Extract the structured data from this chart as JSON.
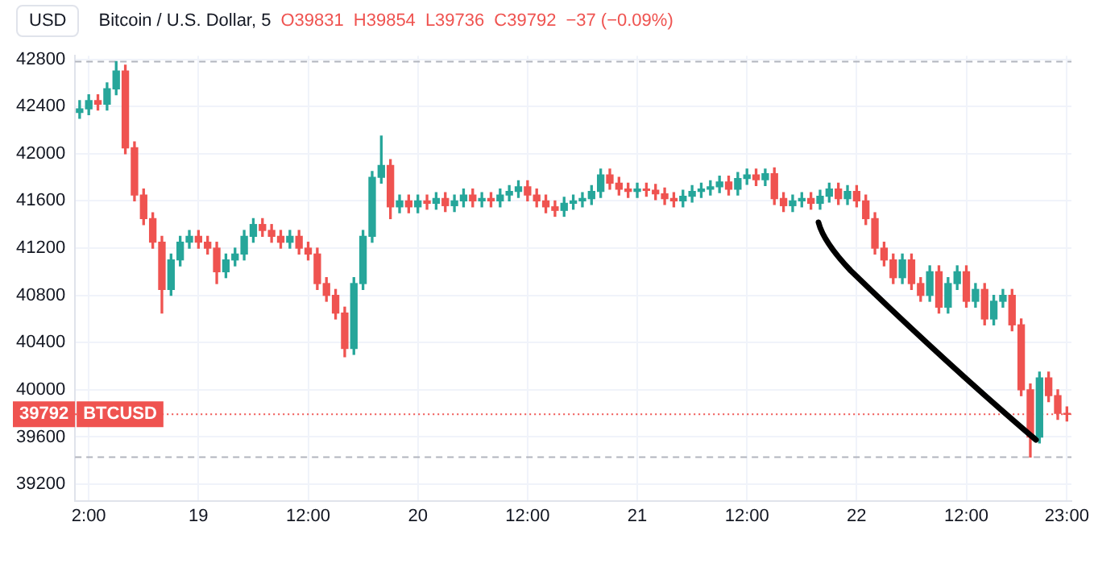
{
  "chart_data": {
    "type": "candlestick",
    "title": "Bitcoin / U.S. Dollar, 5",
    "ylabel": "USD",
    "annotations": [
      "O39831",
      "H39854",
      "L39736",
      "C39792",
      "−37 (−0.09%)",
      {
        "text": "39792",
        "y": 39792
      }
    ],
    "categories": [
      null,
      "2:00",
      null,
      null,
      null,
      null,
      null,
      null,
      null,
      null,
      null,
      null,
      null,
      "19",
      null,
      null,
      null,
      null,
      null,
      null,
      null,
      null,
      null,
      null,
      null,
      "12:00",
      null,
      null,
      null,
      null,
      null,
      null,
      null,
      null,
      null,
      null,
      null,
      "20",
      null,
      null,
      null,
      null,
      null,
      null,
      null,
      null,
      null,
      null,
      null,
      "12:00",
      null,
      null,
      null,
      null,
      null,
      null,
      null,
      null,
      null,
      null,
      null,
      "21",
      null,
      null,
      null,
      null,
      null,
      null,
      null,
      null,
      null,
      null,
      null,
      "12:00",
      null,
      null,
      null,
      null,
      null,
      null,
      null,
      null,
      null,
      null,
      null,
      "22",
      null,
      null,
      null,
      null,
      null,
      null,
      null,
      null,
      null,
      null,
      null,
      "12:00",
      null,
      null,
      null,
      null,
      null,
      null,
      null,
      null,
      null,
      null,
      "23:00"
    ],
    "ohlc": [
      [
        42350,
        42450,
        42300,
        42380
      ],
      [
        42380,
        42500,
        42330,
        42450
      ],
      [
        42450,
        42500,
        42370,
        42420
      ],
      [
        42420,
        42600,
        42370,
        42550
      ],
      [
        42550,
        42780,
        42500,
        42700
      ],
      [
        42700,
        42750,
        42000,
        42050
      ],
      [
        42050,
        42100,
        41600,
        41650
      ],
      [
        41650,
        41700,
        41400,
        41450
      ],
      [
        41450,
        41500,
        41200,
        41250
      ],
      [
        41250,
        41300,
        40650,
        40850
      ],
      [
        40850,
        41150,
        40800,
        41100
      ],
      [
        41100,
        41300,
        41050,
        41250
      ],
      [
        41250,
        41350,
        41200,
        41300
      ],
      [
        41300,
        41350,
        41200,
        41250
      ],
      [
        41250,
        41300,
        41150,
        41200
      ],
      [
        41200,
        41250,
        40900,
        41000
      ],
      [
        41000,
        41150,
        40950,
        41100
      ],
      [
        41100,
        41200,
        41050,
        41150
      ],
      [
        41150,
        41350,
        41100,
        41300
      ],
      [
        41300,
        41450,
        41250,
        41400
      ],
      [
        41400,
        41450,
        41300,
        41350
      ],
      [
        41350,
        41400,
        41250,
        41300
      ],
      [
        41300,
        41350,
        41200,
        41250
      ],
      [
        41250,
        41350,
        41200,
        41300
      ],
      [
        41300,
        41350,
        41150,
        41200
      ],
      [
        41200,
        41250,
        41100,
        41150
      ],
      [
        41150,
        41200,
        40850,
        40900
      ],
      [
        40900,
        40950,
        40750,
        40800
      ],
      [
        40800,
        40850,
        40600,
        40650
      ],
      [
        40650,
        40700,
        40280,
        40350
      ],
      [
        40350,
        40950,
        40300,
        40900
      ],
      [
        40900,
        41350,
        40850,
        41300
      ],
      [
        41300,
        41850,
        41250,
        41800
      ],
      [
        41800,
        42150,
        41750,
        41900
      ],
      [
        41900,
        41950,
        41450,
        41550
      ],
      [
        41550,
        41650,
        41500,
        41600
      ],
      [
        41600,
        41650,
        41500,
        41550
      ],
      [
        41550,
        41650,
        41500,
        41600
      ],
      [
        41600,
        41650,
        41530,
        41580
      ],
      [
        41580,
        41670,
        41530,
        41620
      ],
      [
        41620,
        41670,
        41510,
        41560
      ],
      [
        41560,
        41650,
        41510,
        41600
      ],
      [
        41600,
        41700,
        41550,
        41650
      ],
      [
        41650,
        41700,
        41550,
        41600
      ],
      [
        41600,
        41670,
        41550,
        41620
      ],
      [
        41620,
        41670,
        41550,
        41600
      ],
      [
        41600,
        41700,
        41550,
        41650
      ],
      [
        41650,
        41730,
        41600,
        41680
      ],
      [
        41680,
        41770,
        41630,
        41720
      ],
      [
        41720,
        41770,
        41600,
        41650
      ],
      [
        41650,
        41700,
        41550,
        41600
      ],
      [
        41600,
        41650,
        41500,
        41550
      ],
      [
        41550,
        41600,
        41470,
        41520
      ],
      [
        41520,
        41630,
        41470,
        41580
      ],
      [
        41580,
        41650,
        41530,
        41600
      ],
      [
        41600,
        41670,
        41550,
        41620
      ],
      [
        41620,
        41730,
        41570,
        41680
      ],
      [
        41680,
        41870,
        41630,
        41820
      ],
      [
        41820,
        41870,
        41700,
        41750
      ],
      [
        41750,
        41800,
        41650,
        41700
      ],
      [
        41700,
        41750,
        41630,
        41680
      ],
      [
        41680,
        41750,
        41630,
        41700
      ],
      [
        41700,
        41750,
        41640,
        41690
      ],
      [
        41690,
        41740,
        41610,
        41660
      ],
      [
        41660,
        41710,
        41570,
        41620
      ],
      [
        41620,
        41670,
        41550,
        41600
      ],
      [
        41600,
        41690,
        41550,
        41640
      ],
      [
        41640,
        41730,
        41590,
        41680
      ],
      [
        41680,
        41750,
        41630,
        41700
      ],
      [
        41700,
        41770,
        41650,
        41720
      ],
      [
        41720,
        41810,
        41670,
        41760
      ],
      [
        41760,
        41810,
        41650,
        41700
      ],
      [
        41700,
        41840,
        41650,
        41790
      ],
      [
        41790,
        41870,
        41740,
        41820
      ],
      [
        41820,
        41870,
        41730,
        41780
      ],
      [
        41780,
        41870,
        41730,
        41830
      ],
      [
        41830,
        41880,
        41570,
        41620
      ],
      [
        41620,
        41670,
        41510,
        41560
      ],
      [
        41560,
        41650,
        41510,
        41600
      ],
      [
        41600,
        41670,
        41550,
        41620
      ],
      [
        41620,
        41670,
        41530,
        41580
      ],
      [
        41580,
        41690,
        41530,
        41640
      ],
      [
        41640,
        41750,
        41590,
        41700
      ],
      [
        41700,
        41750,
        41570,
        41620
      ],
      [
        41620,
        41730,
        41570,
        41680
      ],
      [
        41680,
        41730,
        41550,
        41600
      ],
      [
        41600,
        41650,
        41400,
        41450
      ],
      [
        41450,
        41500,
        41150,
        41200
      ],
      [
        41200,
        41250,
        41050,
        41100
      ],
      [
        41100,
        41150,
        40900,
        40950
      ],
      [
        40950,
        41150,
        40900,
        41100
      ],
      [
        41100,
        41150,
        40850,
        40900
      ],
      [
        40900,
        40950,
        40750,
        40800
      ],
      [
        40800,
        41050,
        40750,
        41000
      ],
      [
        41000,
        41050,
        40650,
        40700
      ],
      [
        40700,
        40950,
        40650,
        40900
      ],
      [
        40900,
        41050,
        40850,
        41000
      ],
      [
        41000,
        41050,
        40700,
        40750
      ],
      [
        40750,
        40900,
        40700,
        40850
      ],
      [
        40850,
        40900,
        40550,
        40600
      ],
      [
        40600,
        40800,
        40550,
        40750
      ],
      [
        40750,
        40850,
        40700,
        40800
      ],
      [
        40800,
        40850,
        40500,
        40550
      ],
      [
        40550,
        40600,
        39950,
        40000
      ],
      [
        40000,
        40050,
        39430,
        39600
      ],
      [
        39600,
        40150,
        39550,
        40100
      ],
      [
        40100,
        40150,
        39900,
        39950
      ],
      [
        39950,
        40000,
        39750,
        39800
      ],
      [
        39800,
        39854,
        39736,
        39792
      ]
    ],
    "colors": [
      "#26a69a",
      "#26a69a",
      "#ef5350",
      "#26a69a",
      "#26a69a",
      "#ef5350",
      "#ef5350",
      "#ef5350",
      "#ef5350",
      "#ef5350",
      "#26a69a",
      "#26a69a",
      "#26a69a",
      "#ef5350",
      "#ef5350",
      "#ef5350",
      "#26a69a",
      "#26a69a",
      "#26a69a",
      "#26a69a",
      "#ef5350",
      "#ef5350",
      "#ef5350",
      "#26a69a",
      "#ef5350",
      "#ef5350",
      "#ef5350",
      "#ef5350",
      "#ef5350",
      "#ef5350",
      "#26a69a",
      "#26a69a",
      "#26a69a",
      "#26a69a",
      "#ef5350",
      "#26a69a",
      "#ef5350",
      "#26a69a",
      "#ef5350",
      "#26a69a",
      "#ef5350",
      "#26a69a",
      "#26a69a",
      "#ef5350",
      "#26a69a",
      "#ef5350",
      "#26a69a",
      "#26a69a",
      "#26a69a",
      "#ef5350",
      "#ef5350",
      "#ef5350",
      "#ef5350",
      "#26a69a",
      "#26a69a",
      "#26a69a",
      "#26a69a",
      "#26a69a",
      "#ef5350",
      "#ef5350",
      "#ef5350",
      "#26a69a",
      "#ef5350",
      "#ef5350",
      "#ef5350",
      "#ef5350",
      "#26a69a",
      "#26a69a",
      "#26a69a",
      "#26a69a",
      "#26a69a",
      "#ef5350",
      "#26a69a",
      "#26a69a",
      "#ef5350",
      "#26a69a",
      "#ef5350",
      "#ef5350",
      "#26a69a",
      "#26a69a",
      "#ef5350",
      "#26a69a",
      "#26a69a",
      "#ef5350",
      "#26a69a",
      "#ef5350",
      "#ef5350",
      "#ef5350",
      "#ef5350",
      "#ef5350",
      "#26a69a",
      "#ef5350",
      "#ef5350",
      "#26a69a",
      "#ef5350",
      "#26a69a",
      "#26a69a",
      "#ef5350",
      "#26a69a",
      "#ef5350",
      "#26a69a",
      "#26a69a",
      "#ef5350",
      "#ef5350",
      "#ef5350",
      "#26a69a",
      "#ef5350",
      "#ef5350",
      "#ef5350"
    ],
    "ylim": [
      39060,
      42830
    ],
    "yticks": [
      39200,
      39600,
      40000,
      40400,
      40800,
      41200,
      41600,
      42000,
      42400,
      42800
    ],
    "grid": true,
    "ref_lines": [
      {
        "axis": "y",
        "value": 39792,
        "label": "BTCUSD",
        "color": "#ef5350",
        "line_style": "dotted"
      },
      {
        "axis": "y",
        "value": 42780,
        "color": "#b2b5be",
        "line_style": "dashed"
      },
      {
        "axis": "y",
        "value": 39430,
        "color": "#b2b5be",
        "line_style": "dashed"
      }
    ]
  }
}
